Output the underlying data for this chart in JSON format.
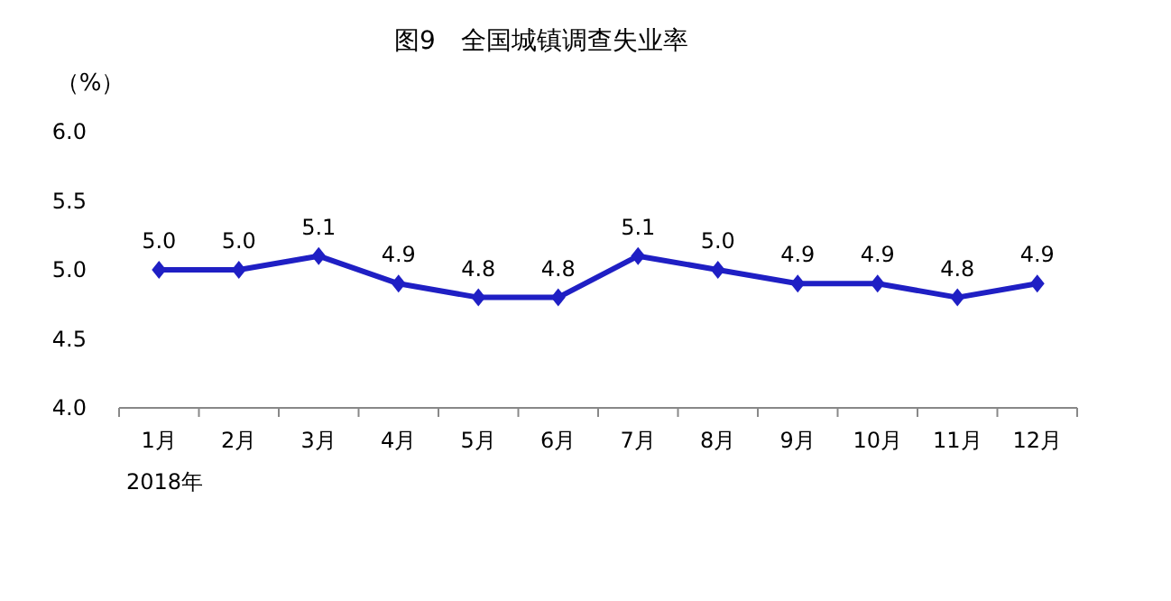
{
  "chart_data": {
    "type": "line",
    "title": "图9　全国城镇调查失业率",
    "ylabel": "（%）",
    "categories": [
      "1月",
      "2月",
      "3月",
      "4月",
      "5月",
      "6月",
      "7月",
      "8月",
      "9月",
      "10月",
      "11月",
      "12月"
    ],
    "series": [
      {
        "color": "#1f1fc4",
        "values": [
          5.0,
          5.0,
          5.1,
          4.9,
          4.8,
          4.8,
          5.1,
          5.0,
          4.9,
          4.9,
          4.8,
          4.9
        ],
        "value_labels": [
          "5.0",
          "5.0",
          "5.1",
          "4.9",
          "4.8",
          "4.8",
          "5.1",
          "5.0",
          "4.9",
          "4.9",
          "4.8",
          "4.9"
        ]
      }
    ],
    "ylim": [
      4.0,
      6.0
    ],
    "yticks": [
      {
        "value": 4,
        "label": "4.0"
      },
      {
        "value": 4.5,
        "label": "4.5"
      },
      {
        "value": 5,
        "label": "5.0"
      },
      {
        "value": 5.5,
        "label": "5.5"
      },
      {
        "value": 6,
        "label": "6.0"
      }
    ],
    "marker": "diamond",
    "line_style": "solid",
    "annotations": [
      "2018年"
    ]
  }
}
